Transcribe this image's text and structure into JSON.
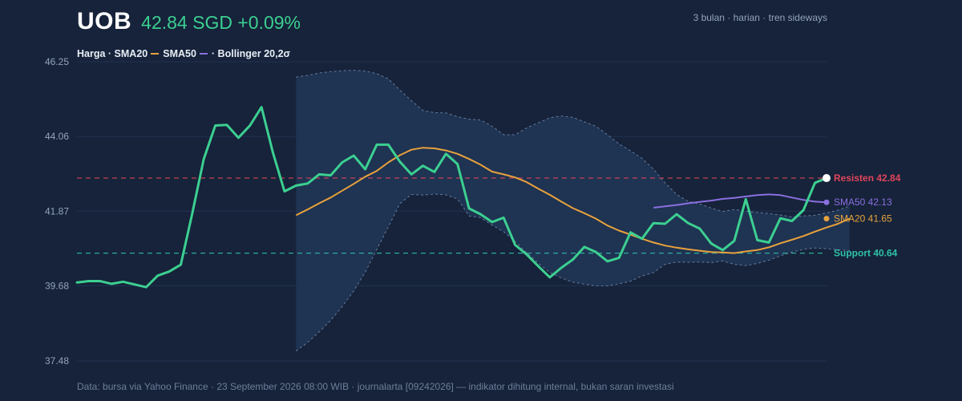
{
  "header": {
    "ticker": "UOB",
    "quote": "42.84 SGD +0.09%",
    "meta": "3 bulan · harian · tren sideways"
  },
  "legend": {
    "price": "Harga · SMA20",
    "sma50": "SMA50",
    "bollinger": "· Bollinger 20,2σ"
  },
  "footer": "Data: bursa via Yahoo Finance · 23 September 2026 08:00 WIB · journalarta [09242026] — indikator dihitung internal, bukan saran investasi",
  "colors": {
    "background": "#16233a",
    "price": "#3ccf91",
    "sma20": "#e8a23c",
    "sma50": "#8b6fe0",
    "band": "#7d93b8",
    "resistance": "#e0445b",
    "support": "#2fc2a8"
  },
  "chart_data": {
    "type": "line",
    "title": "UOB",
    "ylim": [
      37.48,
      46.25
    ],
    "y_ticks": [
      "37.48",
      "39.68",
      "41.87",
      "44.06",
      "46.25"
    ],
    "x_count": 66,
    "series": [
      {
        "name": "Harga",
        "start_index": 0,
        "values": [
          39.78,
          39.82,
          39.82,
          39.74,
          39.8,
          39.72,
          39.64,
          39.98,
          40.1,
          40.3,
          41.8,
          43.4,
          44.38,
          44.4,
          44.02,
          44.38,
          44.92,
          43.58,
          42.45,
          42.62,
          42.68,
          42.95,
          42.92,
          43.3,
          43.5,
          43.1,
          43.82,
          43.82,
          43.32,
          42.95,
          43.2,
          43.02,
          43.55,
          43.25,
          41.95,
          41.78,
          41.55,
          41.68,
          40.88,
          40.6,
          40.26,
          39.93,
          40.21,
          40.45,
          40.82,
          40.67,
          40.4,
          40.5,
          41.25,
          41.06,
          41.52,
          41.5,
          41.78,
          41.52,
          41.36,
          40.92,
          40.73,
          41.0,
          42.22,
          41.02,
          40.95,
          41.66,
          41.58,
          41.9,
          42.7,
          42.84
        ]
      },
      {
        "name": "SMA20",
        "start_index": 19,
        "values": [
          41.75,
          41.92,
          42.1,
          42.27,
          42.47,
          42.67,
          42.88,
          43.05,
          43.3,
          43.51,
          43.67,
          43.73,
          43.71,
          43.65,
          43.55,
          43.4,
          43.23,
          43.03,
          42.95,
          42.86,
          42.72,
          42.53,
          42.35,
          42.15,
          41.96,
          41.81,
          41.65,
          41.45,
          41.3,
          41.18,
          41.06,
          40.95,
          40.86,
          40.8,
          40.75,
          40.71,
          40.67,
          40.66,
          40.64,
          40.69,
          40.73,
          40.81,
          40.93,
          41.03,
          41.14,
          41.27,
          41.39,
          41.5,
          41.65
        ]
      },
      {
        "name": "SMA50",
        "start_index": 50,
        "values": [
          41.97,
          42.01,
          42.05,
          42.1,
          42.14,
          42.18,
          42.23,
          42.26,
          42.3,
          42.34,
          42.36,
          42.34,
          42.27,
          42.2,
          42.15,
          42.13
        ]
      },
      {
        "name": "Bollinger upper",
        "start_index": 19,
        "values": [
          45.8,
          45.85,
          45.92,
          45.96,
          45.99,
          46.0,
          45.98,
          45.9,
          45.75,
          45.42,
          45.11,
          44.82,
          44.76,
          44.75,
          44.64,
          44.57,
          44.54,
          44.36,
          44.11,
          44.11,
          44.31,
          44.46,
          44.61,
          44.66,
          44.62,
          44.49,
          44.36,
          44.11,
          43.84,
          43.64,
          43.42,
          43.1,
          42.7,
          42.36,
          42.16,
          42.08,
          41.96,
          41.86,
          41.92,
          41.87,
          41.83,
          41.8,
          41.76,
          41.7,
          41.73,
          41.75,
          41.82,
          41.9,
          42.02
        ]
      },
      {
        "name": "Bollinger lower",
        "start_index": 19,
        "values": [
          37.77,
          38.02,
          38.33,
          38.67,
          39.07,
          39.53,
          40.08,
          40.75,
          41.41,
          42.09,
          42.36,
          42.34,
          42.37,
          42.35,
          42.23,
          41.73,
          41.68,
          41.46,
          41.27,
          40.98,
          40.65,
          40.35,
          40.07,
          39.91,
          39.79,
          39.73,
          39.68,
          39.68,
          39.74,
          39.82,
          39.97,
          40.07,
          40.31,
          40.38,
          40.37,
          40.38,
          40.36,
          40.41,
          40.31,
          40.27,
          40.34,
          40.43,
          40.56,
          40.67,
          40.75,
          40.79,
          40.77,
          40.74,
          40.71
        ]
      }
    ],
    "reference_lines": [
      {
        "name": "Resisten",
        "value": 42.84,
        "label": "Resisten 42.84"
      },
      {
        "name": "Support",
        "value": 40.64,
        "label": "Support 40.64"
      }
    ],
    "end_labels": [
      {
        "series": "SMA50",
        "label": "SMA50 42.13",
        "value": 42.13
      },
      {
        "series": "SMA20",
        "label": "SMA20 41.65",
        "value": 41.65
      }
    ],
    "grid": true
  }
}
